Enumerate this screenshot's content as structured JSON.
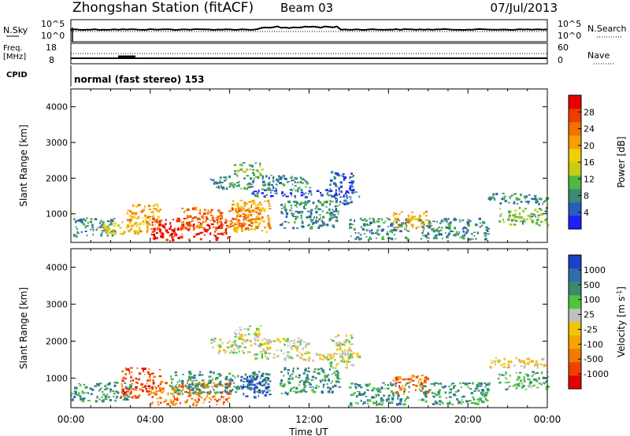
{
  "header": {
    "station": "Zhongshan Station (fitACF)",
    "beam": "Beam 03",
    "date": "07/Jul/2013"
  },
  "sky_panel": {
    "left_label": "N.Sky",
    "left_ticks": [
      "10^5",
      "10^0"
    ],
    "right_ticks": [
      "10^5",
      "10^0"
    ],
    "right_label": "N.Search"
  },
  "freq_panel": {
    "left_label_1": "Freq.",
    "left_label_2": "[MHz]",
    "left_ticks": [
      "18",
      "8"
    ],
    "right_ticks": [
      "60",
      "0"
    ],
    "right_label": "Nave"
  },
  "cpid_panel": {
    "label": "CPID",
    "mode_text": "normal (fast stereo) 153"
  },
  "time_axis": {
    "label": "Time UT",
    "ticks": [
      "00:00",
      "04:00",
      "08:00",
      "12:00",
      "16:00",
      "20:00",
      "00:00"
    ]
  },
  "chart_data": [
    {
      "type": "heatmap",
      "name": "power",
      "ylabel": "Slant Range [km]",
      "y_ticks": [
        "1000",
        "2000",
        "3000",
        "4000"
      ],
      "ylim": [
        200,
        4500
      ],
      "xlim_hours": [
        0,
        24
      ],
      "colorbar": {
        "label": "Power [dB]",
        "ticks": [
          "4",
          "8",
          "12",
          "16",
          "20",
          "24",
          "28"
        ],
        "colors": [
          "#1e1eff",
          "#2a5dbb",
          "#3a8a78",
          "#4fb83e",
          "#c6cc1a",
          "#f0d000",
          "#f5a000",
          "#f27200",
          "#ee3c00",
          "#e60000"
        ]
      },
      "regions": [
        {
          "t0": 0.0,
          "t1": 2.2,
          "r0": 400,
          "r1": 900,
          "level": 2
        },
        {
          "t0": 1.5,
          "t1": 3.5,
          "r0": 450,
          "r1": 800,
          "level": 5
        },
        {
          "t0": 2.8,
          "t1": 4.5,
          "r0": 500,
          "r1": 1300,
          "level": 6
        },
        {
          "t0": 4.0,
          "t1": 8.0,
          "r0": 300,
          "r1": 900,
          "level": 9
        },
        {
          "t0": 5.5,
          "t1": 9.5,
          "r0": 600,
          "r1": 1200,
          "level": 7
        },
        {
          "t0": 8.0,
          "t1": 10.0,
          "r0": 500,
          "r1": 1400,
          "level": 6
        },
        {
          "t0": 7.0,
          "t1": 12.0,
          "r0": 1700,
          "r1": 2100,
          "level": 2
        },
        {
          "t0": 8.2,
          "t1": 9.6,
          "r0": 2100,
          "r1": 2450,
          "level": 3
        },
        {
          "t0": 9.0,
          "t1": 14.5,
          "r0": 1500,
          "r1": 1700,
          "level": 1
        },
        {
          "t0": 10.5,
          "t1": 13.5,
          "r0": 600,
          "r1": 1400,
          "level": 2
        },
        {
          "t0": 13.0,
          "t1": 14.2,
          "r0": 1300,
          "r1": 2200,
          "level": 1
        },
        {
          "t0": 14.0,
          "t1": 17.0,
          "r0": 300,
          "r1": 900,
          "level": 2
        },
        {
          "t0": 16.2,
          "t1": 18.0,
          "r0": 600,
          "r1": 1100,
          "level": 6
        },
        {
          "t0": 17.5,
          "t1": 21.0,
          "r0": 300,
          "r1": 900,
          "level": 2
        },
        {
          "t0": 21.0,
          "t1": 24.0,
          "r0": 1300,
          "r1": 1600,
          "level": 2
        },
        {
          "t0": 21.5,
          "t1": 24.0,
          "r0": 700,
          "r1": 1200,
          "level": 3
        }
      ]
    },
    {
      "type": "heatmap",
      "name": "velocity",
      "ylabel": "Slant Range [km]",
      "y_ticks": [
        "1000",
        "2000",
        "3000",
        "4000"
      ],
      "ylim": [
        200,
        4500
      ],
      "xlim_hours": [
        0,
        24
      ],
      "colorbar": {
        "label": "Velocity [m s",
        "label_sup": "-1",
        "label_end": "]",
        "ticks": [
          "-1000",
          "-500",
          "-100",
          "-25",
          "25",
          "100",
          "500",
          "1000"
        ],
        "colors": [
          "#e60000",
          "#f04000",
          "#f27a00",
          "#f5a300",
          "#f3c400",
          "#c0c0c0",
          "#4fc63a",
          "#3b8a6e",
          "#2f6fa8",
          "#1e3fc8"
        ]
      },
      "regions": [
        {
          "t0": 0.0,
          "t1": 3.0,
          "r0": 400,
          "r1": 900,
          "level": 7
        },
        {
          "t0": 2.5,
          "t1": 4.5,
          "r0": 500,
          "r1": 1300,
          "level": 1
        },
        {
          "t0": 4.0,
          "t1": 8.0,
          "r0": 300,
          "r1": 900,
          "level": 2
        },
        {
          "t0": 5.0,
          "t1": 10.0,
          "r0": 600,
          "r1": 1200,
          "level": 7
        },
        {
          "t0": 8.5,
          "t1": 10.0,
          "r0": 500,
          "r1": 1100,
          "level": 9
        },
        {
          "t0": 7.0,
          "t1": 12.0,
          "r0": 1700,
          "r1": 2100,
          "level": 5
        },
        {
          "t0": 8.2,
          "t1": 9.6,
          "r0": 2100,
          "r1": 2450,
          "level": 5
        },
        {
          "t0": 9.0,
          "t1": 14.5,
          "r0": 1500,
          "r1": 1700,
          "level": 5
        },
        {
          "t0": 10.5,
          "t1": 13.5,
          "r0": 600,
          "r1": 1300,
          "level": 7
        },
        {
          "t0": 13.0,
          "t1": 14.2,
          "r0": 1300,
          "r1": 2200,
          "level": 5
        },
        {
          "t0": 14.0,
          "t1": 17.0,
          "r0": 300,
          "r1": 900,
          "level": 7
        },
        {
          "t0": 16.2,
          "t1": 18.0,
          "r0": 600,
          "r1": 1100,
          "level": 2
        },
        {
          "t0": 17.5,
          "t1": 21.0,
          "r0": 300,
          "r1": 900,
          "level": 7
        },
        {
          "t0": 21.0,
          "t1": 24.0,
          "r0": 1300,
          "r1": 1600,
          "level": 4
        },
        {
          "t0": 21.5,
          "t1": 24.0,
          "r0": 700,
          "r1": 1200,
          "level": 6
        }
      ]
    }
  ]
}
